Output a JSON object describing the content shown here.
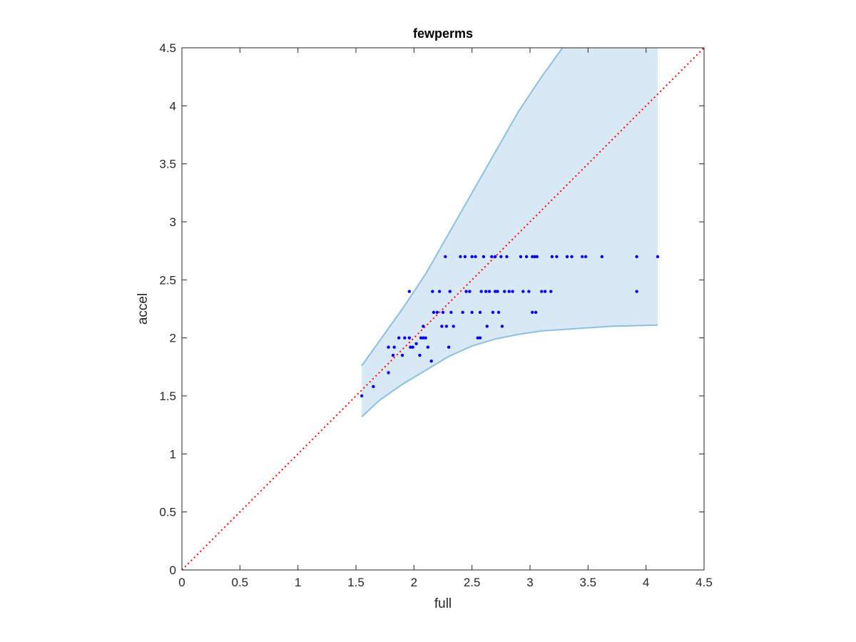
{
  "chart_data": {
    "type": "scatter",
    "title": "fewperms",
    "xlabel": "full",
    "ylabel": "accel",
    "xlim": [
      0,
      4.5
    ],
    "ylim": [
      0,
      4.5
    ],
    "xticks": [
      "0",
      "0.5",
      "1",
      "1.5",
      "2",
      "2.5",
      "3",
      "3.5",
      "4",
      "4.5"
    ],
    "yticks": [
      "0",
      "0.5",
      "1",
      "1.5",
      "2",
      "2.5",
      "3",
      "3.5",
      "4",
      "4.5"
    ],
    "grid": false,
    "legend": "none",
    "colors": {
      "points": "#0000ee",
      "band_fill": "#d8e8f4",
      "band_edge": "#8cbfe0",
      "diagonal": "#ff0000",
      "axes": "#262626"
    },
    "band": {
      "upper": [
        [
          1.55,
          1.76
        ],
        [
          1.7,
          1.97
        ],
        [
          1.9,
          2.25
        ],
        [
          2.1,
          2.55
        ],
        [
          2.3,
          2.9
        ],
        [
          2.5,
          3.25
        ],
        [
          2.7,
          3.6
        ],
        [
          2.9,
          3.95
        ],
        [
          3.1,
          4.25
        ],
        [
          3.28,
          4.5
        ],
        [
          4.1,
          4.5
        ]
      ],
      "lower": [
        [
          1.55,
          1.32
        ],
        [
          1.7,
          1.46
        ],
        [
          1.9,
          1.6
        ],
        [
          2.1,
          1.72
        ],
        [
          2.3,
          1.84
        ],
        [
          2.5,
          1.93
        ],
        [
          2.7,
          1.99
        ],
        [
          2.9,
          2.03
        ],
        [
          3.1,
          2.06
        ],
        [
          3.4,
          2.08
        ],
        [
          3.7,
          2.1
        ],
        [
          4.1,
          2.11
        ]
      ]
    },
    "diagonal": [
      [
        0,
        0
      ],
      [
        4.5,
        4.5
      ]
    ],
    "series": [
      {
        "points": [
          [
            1.55,
            1.5
          ],
          [
            1.65,
            1.58
          ],
          [
            1.78,
            1.7
          ],
          [
            1.78,
            1.92
          ],
          [
            1.82,
            1.85
          ],
          [
            1.83,
            1.92
          ],
          [
            1.87,
            2.0
          ],
          [
            1.9,
            1.85
          ],
          [
            1.92,
            2.0
          ],
          [
            1.96,
            2.0
          ],
          [
            1.96,
            2.4
          ],
          [
            1.97,
            1.92
          ],
          [
            1.99,
            1.92
          ],
          [
            2.02,
            1.95
          ],
          [
            2.05,
            1.85
          ],
          [
            2.06,
            2.0
          ],
          [
            2.08,
            2.0
          ],
          [
            2.08,
            2.1
          ],
          [
            2.1,
            2.0
          ],
          [
            2.12,
            1.92
          ],
          [
            2.15,
            1.8
          ],
          [
            2.16,
            2.4
          ],
          [
            2.17,
            2.22
          ],
          [
            2.2,
            2.22
          ],
          [
            2.22,
            2.4
          ],
          [
            2.24,
            2.1
          ],
          [
            2.25,
            2.22
          ],
          [
            2.27,
            2.7
          ],
          [
            2.28,
            2.1
          ],
          [
            2.3,
            1.92
          ],
          [
            2.31,
            2.4
          ],
          [
            2.32,
            2.22
          ],
          [
            2.34,
            2.1
          ],
          [
            2.4,
            2.7
          ],
          [
            2.42,
            2.22
          ],
          [
            2.44,
            2.7
          ],
          [
            2.45,
            2.4
          ],
          [
            2.48,
            2.4
          ],
          [
            2.5,
            2.22
          ],
          [
            2.5,
            2.7
          ],
          [
            2.53,
            2.7
          ],
          [
            2.55,
            2.0
          ],
          [
            2.57,
            2.0
          ],
          [
            2.57,
            2.22
          ],
          [
            2.58,
            2.4
          ],
          [
            2.6,
            2.7
          ],
          [
            2.62,
            2.4
          ],
          [
            2.63,
            2.1
          ],
          [
            2.65,
            2.4
          ],
          [
            2.67,
            2.7
          ],
          [
            2.68,
            2.22
          ],
          [
            2.7,
            2.4
          ],
          [
            2.7,
            2.7
          ],
          [
            2.72,
            2.4
          ],
          [
            2.73,
            2.22
          ],
          [
            2.75,
            2.7
          ],
          [
            2.76,
            2.1
          ],
          [
            2.78,
            2.4
          ],
          [
            2.8,
            2.7
          ],
          [
            2.82,
            2.4
          ],
          [
            2.85,
            2.4
          ],
          [
            2.92,
            2.7
          ],
          [
            2.94,
            2.4
          ],
          [
            2.97,
            2.7
          ],
          [
            2.99,
            2.4
          ],
          [
            3.02,
            2.22
          ],
          [
            3.02,
            2.7
          ],
          [
            3.04,
            2.7
          ],
          [
            3.05,
            2.22
          ],
          [
            3.06,
            2.7
          ],
          [
            3.1,
            2.4
          ],
          [
            3.13,
            2.4
          ],
          [
            3.18,
            2.4
          ],
          [
            3.19,
            2.7
          ],
          [
            3.23,
            2.7
          ],
          [
            3.32,
            2.7
          ],
          [
            3.36,
            2.7
          ],
          [
            3.45,
            2.7
          ],
          [
            3.48,
            2.7
          ],
          [
            3.62,
            2.7
          ],
          [
            3.92,
            2.4
          ],
          [
            3.92,
            2.7
          ],
          [
            4.1,
            2.7
          ]
        ]
      }
    ]
  }
}
